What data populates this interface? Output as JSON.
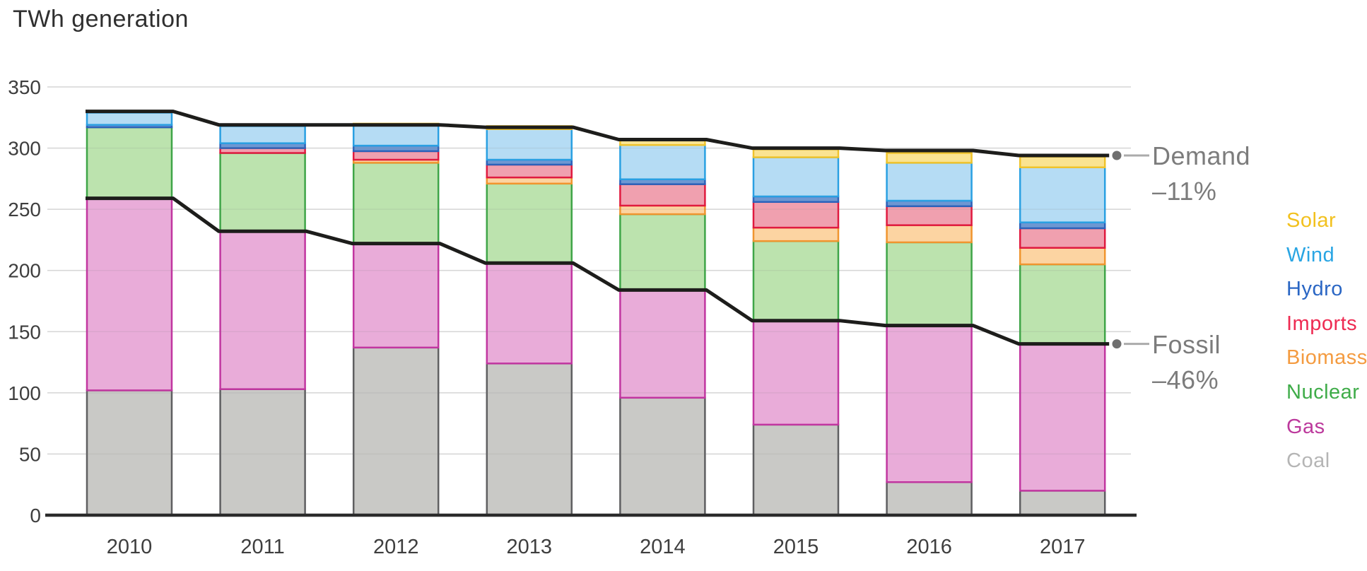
{
  "title": "TWh generation",
  "chart_data": {
    "type": "bar",
    "stacked": true,
    "title": "TWh generation",
    "categories": [
      "2010",
      "2011",
      "2012",
      "2013",
      "2014",
      "2015",
      "2016",
      "2017"
    ],
    "ylabel": "TWh",
    "ylim": [
      0,
      350
    ],
    "y_ticks": [
      0,
      50,
      100,
      150,
      200,
      250,
      300,
      350
    ],
    "grid": "horizontal",
    "legend_position": "right",
    "series": [
      {
        "name": "Coal",
        "values": [
          102,
          103,
          137,
          124,
          96,
          74,
          27,
          20
        ],
        "fill": "#c9c9c6",
        "stroke": "#5f5f61"
      },
      {
        "name": "Gas",
        "values": [
          157,
          129,
          85,
          82,
          88,
          85,
          128,
          120
        ],
        "fill": "#e9acd9",
        "stroke": "#c136a0"
      },
      {
        "name": "Nuclear",
        "values": [
          58,
          64,
          66,
          65,
          62,
          65,
          68,
          65
        ],
        "fill": "#bce3ae",
        "stroke": "#3fa548"
      },
      {
        "name": "Biomass",
        "values": [
          0,
          0,
          2.5,
          5,
          7,
          11,
          14,
          13.5
        ],
        "fill": "#fcd4a2",
        "stroke": "#f0952f"
      },
      {
        "name": "Imports",
        "values": [
          0,
          4,
          7,
          10.5,
          17.5,
          21,
          15.5,
          16
        ],
        "fill": "#f0a0af",
        "stroke": "#e01a3f"
      },
      {
        "name": "Hydro",
        "values": [
          2,
          4,
          4.5,
          4,
          4,
          4.5,
          4.5,
          4.8
        ],
        "fill": "#6d97d2",
        "stroke": "#2b62ba"
      },
      {
        "name": "Wind",
        "values": [
          10,
          14,
          16.5,
          25,
          28,
          32,
          31,
          45
        ],
        "fill": "#b5dcf4",
        "stroke": "#2aa0e2"
      },
      {
        "name": "Solar",
        "values": [
          0,
          0,
          1.5,
          2.5,
          5,
          6.5,
          8,
          8.7
        ],
        "fill": "#fae391",
        "stroke": "#efc32c"
      }
    ],
    "lines": [
      {
        "name": "Demand",
        "values": [
          330,
          319,
          319,
          317,
          307,
          300,
          298,
          294
        ],
        "color": "#1d1d1b"
      },
      {
        "name": "Fossil",
        "values": [
          259,
          232,
          222,
          206,
          184,
          159,
          155,
          140
        ],
        "color": "#1d1d1b"
      }
    ]
  },
  "annotations": {
    "demand": {
      "label": "Demand",
      "pct": "–11%"
    },
    "fossil": {
      "label": "Fossil",
      "pct": "–46%"
    }
  },
  "legend": {
    "items": [
      {
        "label": "Solar",
        "color": "#f2c11e"
      },
      {
        "label": "Wind",
        "color": "#29a5e3"
      },
      {
        "label": "Hydro",
        "color": "#2a66c4"
      },
      {
        "label": "Imports",
        "color": "#ee2b52"
      },
      {
        "label": "Biomass",
        "color": "#f49b40"
      },
      {
        "label": "Nuclear",
        "color": "#3fac49"
      },
      {
        "label": "Gas",
        "color": "#bc399c"
      },
      {
        "label": "Coal",
        "color": "#b5b5b5"
      }
    ]
  },
  "style": {
    "gridline_color": "#e5e5e5",
    "axis_color": "#2b2b2b",
    "tick_label_color": "#3e3e3e",
    "annotation_color": "#7c7c7c",
    "leader_dot_color": "#6f6f6f",
    "leader_line_color": "#ababab"
  }
}
